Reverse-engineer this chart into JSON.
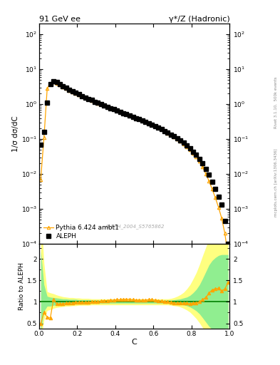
{
  "title_left": "91 GeV ee",
  "title_right": "γ*/Z (Hadronic)",
  "ylabel_main": "1/σ dσ/dC",
  "ylabel_ratio": "Ratio to ALEPH",
  "xlabel": "C",
  "right_label_top": "Rivet 3.1.10,  500k events",
  "right_label_bottom": "mcplots.cern.ch [arXiv:1306.3436]",
  "watermark": "ALEPH_2004_S5765862",
  "aleph_x": [
    0.008,
    0.025,
    0.042,
    0.058,
    0.075,
    0.092,
    0.108,
    0.125,
    0.142,
    0.158,
    0.175,
    0.192,
    0.208,
    0.225,
    0.242,
    0.258,
    0.275,
    0.292,
    0.308,
    0.325,
    0.342,
    0.358,
    0.375,
    0.392,
    0.408,
    0.425,
    0.442,
    0.458,
    0.475,
    0.492,
    0.508,
    0.525,
    0.542,
    0.558,
    0.575,
    0.592,
    0.608,
    0.625,
    0.642,
    0.658,
    0.675,
    0.692,
    0.708,
    0.725,
    0.742,
    0.758,
    0.775,
    0.792,
    0.808,
    0.825,
    0.842,
    0.858,
    0.875,
    0.892,
    0.908,
    0.925,
    0.942,
    0.958,
    0.975,
    0.992
  ],
  "aleph_y": [
    0.07,
    0.16,
    1.1,
    3.8,
    4.5,
    4.2,
    3.8,
    3.3,
    2.9,
    2.6,
    2.3,
    2.1,
    1.9,
    1.7,
    1.55,
    1.42,
    1.3,
    1.18,
    1.08,
    0.98,
    0.9,
    0.83,
    0.77,
    0.71,
    0.65,
    0.6,
    0.55,
    0.51,
    0.47,
    0.43,
    0.4,
    0.37,
    0.34,
    0.31,
    0.285,
    0.26,
    0.235,
    0.21,
    0.19,
    0.17,
    0.15,
    0.135,
    0.12,
    0.105,
    0.09,
    0.078,
    0.065,
    0.054,
    0.044,
    0.035,
    0.027,
    0.02,
    0.014,
    0.0095,
    0.006,
    0.0037,
    0.0022,
    0.0013,
    0.00045,
    0.0001
  ],
  "pythia_y": [
    0.007,
    0.11,
    2.8,
    4.0,
    4.3,
    3.9,
    3.6,
    3.15,
    2.8,
    2.5,
    2.25,
    2.05,
    1.85,
    1.67,
    1.52,
    1.4,
    1.29,
    1.17,
    1.07,
    0.98,
    0.9,
    0.83,
    0.77,
    0.71,
    0.655,
    0.605,
    0.555,
    0.51,
    0.47,
    0.43,
    0.4,
    0.37,
    0.34,
    0.31,
    0.285,
    0.26,
    0.235,
    0.21,
    0.19,
    0.165,
    0.148,
    0.132,
    0.116,
    0.101,
    0.086,
    0.073,
    0.061,
    0.05,
    0.04,
    0.031,
    0.023,
    0.016,
    0.01,
    0.0063,
    0.0037,
    0.0021,
    0.0011,
    0.00055,
    0.0002,
    4.5e-05
  ],
  "ratio_y": [
    0.5,
    0.75,
    0.65,
    0.62,
    1.05,
    0.95,
    0.95,
    0.96,
    0.97,
    0.97,
    0.98,
    0.99,
    0.99,
    0.99,
    0.99,
    0.99,
    1.0,
    1.0,
    1.0,
    1.02,
    1.03,
    1.03,
    1.04,
    1.04,
    1.05,
    1.05,
    1.06,
    1.06,
    1.06,
    1.05,
    1.04,
    1.04,
    1.04,
    1.04,
    1.05,
    1.05,
    1.04,
    1.03,
    1.02,
    1.01,
    1.0,
    0.99,
    0.98,
    0.97,
    0.97,
    0.97,
    0.97,
    0.96,
    0.97,
    0.98,
    1.0,
    1.05,
    1.1,
    1.2,
    1.28,
    1.3,
    1.32,
    1.25,
    1.3,
    1.45
  ],
  "green_band_lo": [
    0.3,
    0.78,
    0.9,
    0.9,
    0.92,
    0.93,
    0.94,
    0.94,
    0.95,
    0.95,
    0.95,
    0.96,
    0.96,
    0.96,
    0.96,
    0.96,
    0.97,
    0.97,
    0.97,
    0.97,
    0.97,
    0.97,
    0.97,
    0.97,
    0.97,
    0.97,
    0.97,
    0.97,
    0.97,
    0.97,
    0.97,
    0.97,
    0.97,
    0.97,
    0.97,
    0.97,
    0.97,
    0.97,
    0.97,
    0.97,
    0.97,
    0.97,
    0.96,
    0.95,
    0.94,
    0.93,
    0.91,
    0.88,
    0.84,
    0.79,
    0.72,
    0.63,
    0.53,
    0.43,
    0.36,
    0.29,
    0.22,
    0.17,
    0.11,
    0.06
  ],
  "green_band_hi": [
    2.2,
    1.4,
    1.13,
    1.11,
    1.1,
    1.09,
    1.08,
    1.07,
    1.07,
    1.06,
    1.06,
    1.06,
    1.05,
    1.05,
    1.05,
    1.05,
    1.04,
    1.04,
    1.04,
    1.04,
    1.04,
    1.04,
    1.04,
    1.04,
    1.04,
    1.04,
    1.04,
    1.04,
    1.04,
    1.04,
    1.04,
    1.04,
    1.04,
    1.04,
    1.04,
    1.04,
    1.04,
    1.04,
    1.04,
    1.04,
    1.04,
    1.04,
    1.05,
    1.06,
    1.07,
    1.09,
    1.11,
    1.15,
    1.21,
    1.29,
    1.4,
    1.54,
    1.7,
    1.86,
    1.96,
    2.03,
    2.08,
    2.1,
    2.1,
    2.1
  ],
  "yellow_band_lo": [
    0.1,
    0.58,
    0.8,
    0.82,
    0.85,
    0.87,
    0.88,
    0.89,
    0.9,
    0.9,
    0.91,
    0.91,
    0.92,
    0.92,
    0.92,
    0.92,
    0.93,
    0.93,
    0.93,
    0.93,
    0.93,
    0.93,
    0.93,
    0.93,
    0.93,
    0.93,
    0.93,
    0.93,
    0.93,
    0.93,
    0.93,
    0.93,
    0.93,
    0.93,
    0.93,
    0.93,
    0.93,
    0.93,
    0.93,
    0.93,
    0.93,
    0.92,
    0.91,
    0.9,
    0.88,
    0.85,
    0.81,
    0.76,
    0.69,
    0.61,
    0.51,
    0.4,
    0.29,
    0.19,
    0.12,
    0.07,
    0.04,
    0.02,
    0.01,
    0.01
  ],
  "yellow_band_hi": [
    3.2,
    1.9,
    1.24,
    1.21,
    1.19,
    1.16,
    1.14,
    1.12,
    1.11,
    1.1,
    1.1,
    1.09,
    1.09,
    1.08,
    1.08,
    1.08,
    1.07,
    1.07,
    1.07,
    1.07,
    1.07,
    1.07,
    1.07,
    1.07,
    1.07,
    1.07,
    1.07,
    1.07,
    1.07,
    1.07,
    1.07,
    1.07,
    1.07,
    1.07,
    1.07,
    1.07,
    1.07,
    1.07,
    1.07,
    1.07,
    1.07,
    1.08,
    1.1,
    1.13,
    1.17,
    1.22,
    1.3,
    1.4,
    1.53,
    1.68,
    1.87,
    2.07,
    2.27,
    2.47,
    2.6,
    2.68,
    2.7,
    2.7,
    2.7,
    2.7
  ],
  "aleph_color": "#000000",
  "pythia_color": "#FFA500",
  "ref_line_color": "#008000",
  "green_band_color": "#90EE90",
  "yellow_band_color": "#FFFF80",
  "bg_color": "#ffffff",
  "ylim_main": [
    0.0001,
    200
  ],
  "ylim_ratio": [
    0.38,
    2.35
  ],
  "xlim": [
    0.0,
    1.0
  ]
}
